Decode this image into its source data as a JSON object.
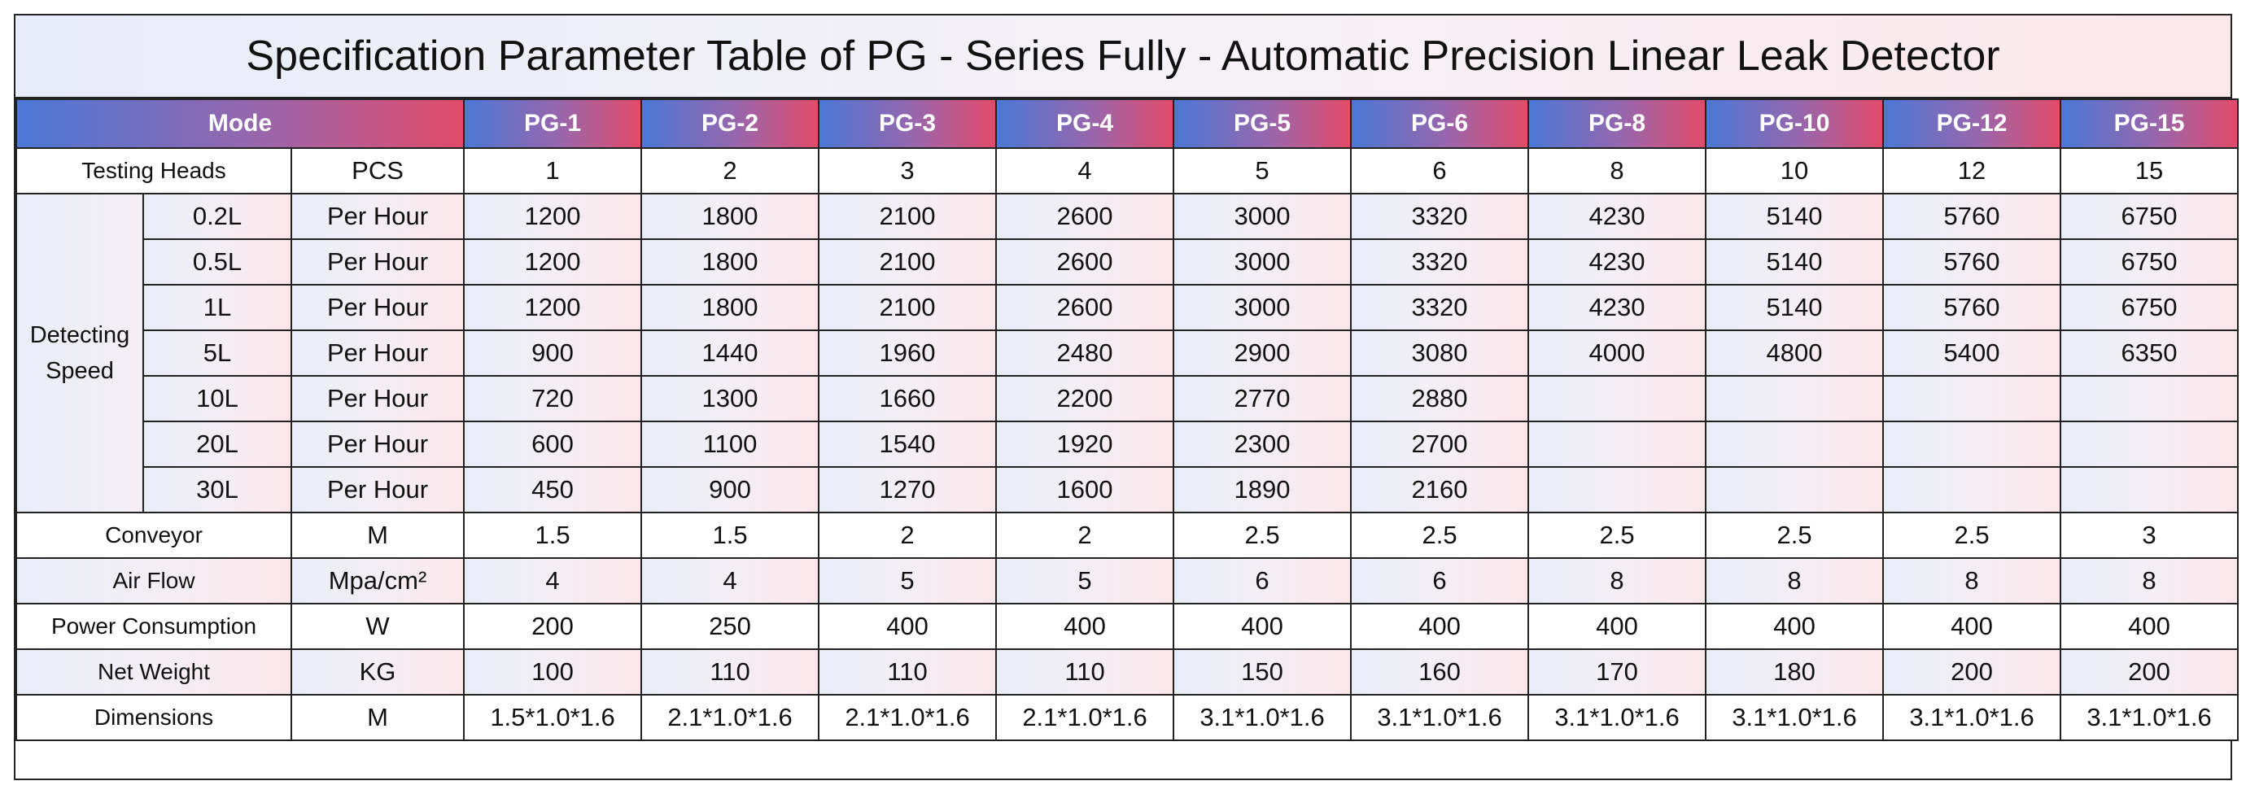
{
  "title": "Specification Parameter Table of PG - Series Fully - Automatic Precision Linear Leak Detector",
  "header": {
    "mode_label": "Mode",
    "models": [
      "PG-1",
      "PG-2",
      "PG-3",
      "PG-4",
      "PG-5",
      "PG-6",
      "PG-8",
      "PG-10",
      "PG-12",
      "PG-15"
    ]
  },
  "testing_heads": {
    "label": "Testing Heads",
    "unit": "PCS",
    "values": [
      "1",
      "2",
      "3",
      "4",
      "5",
      "6",
      "8",
      "10",
      "12",
      "15"
    ]
  },
  "detecting_speed": {
    "label": "Detecting Speed",
    "rows": [
      {
        "size": "0.2L",
        "unit": "Per Hour",
        "values": [
          "1200",
          "1800",
          "2100",
          "2600",
          "3000",
          "3320",
          "4230",
          "5140",
          "5760",
          "6750"
        ]
      },
      {
        "size": "0.5L",
        "unit": "Per Hour",
        "values": [
          "1200",
          "1800",
          "2100",
          "2600",
          "3000",
          "3320",
          "4230",
          "5140",
          "5760",
          "6750"
        ]
      },
      {
        "size": "1L",
        "unit": "Per Hour",
        "values": [
          "1200",
          "1800",
          "2100",
          "2600",
          "3000",
          "3320",
          "4230",
          "5140",
          "5760",
          "6750"
        ]
      },
      {
        "size": "5L",
        "unit": "Per Hour",
        "values": [
          "900",
          "1440",
          "1960",
          "2480",
          "2900",
          "3080",
          "4000",
          "4800",
          "5400",
          "6350"
        ]
      },
      {
        "size": "10L",
        "unit": "Per Hour",
        "values": [
          "720",
          "1300",
          "1660",
          "2200",
          "2770",
          "2880",
          "",
          "",
          "",
          ""
        ]
      },
      {
        "size": "20L",
        "unit": "Per Hour",
        "values": [
          "600",
          "1100",
          "1540",
          "1920",
          "2300",
          "2700",
          "",
          "",
          "",
          ""
        ]
      },
      {
        "size": "30L",
        "unit": "Per Hour",
        "values": [
          "450",
          "900",
          "1270",
          "1600",
          "1890",
          "2160",
          "",
          "",
          "",
          ""
        ]
      }
    ]
  },
  "specs": [
    {
      "label": "Conveyor",
      "unit": "M",
      "values": [
        "1.5",
        "1.5",
        "2",
        "2",
        "2.5",
        "2.5",
        "2.5",
        "2.5",
        "2.5",
        "3"
      ]
    },
    {
      "label": "Air Flow",
      "unit": "Mpa/cm²",
      "values": [
        "4",
        "4",
        "5",
        "5",
        "6",
        "6",
        "8",
        "8",
        "8",
        "8"
      ]
    },
    {
      "label": "Power Consumption",
      "unit": "W",
      "values": [
        "200",
        "250",
        "400",
        "400",
        "400",
        "400",
        "400",
        "400",
        "400",
        "400"
      ]
    },
    {
      "label": "Net Weight",
      "unit": "KG",
      "values": [
        "100",
        "110",
        "110",
        "110",
        "150",
        "160",
        "170",
        "180",
        "200",
        "200"
      ]
    },
    {
      "label": "Dimensions",
      "unit": "M",
      "values": [
        "1.5*1.0*1.6",
        "2.1*1.0*1.6",
        "2.1*1.0*1.6",
        "2.1*1.0*1.6",
        "3.1*1.0*1.6",
        "3.1*1.0*1.6",
        "3.1*1.0*1.6",
        "3.1*1.0*1.6",
        "3.1*1.0*1.6",
        "3.1*1.0*1.6"
      ]
    }
  ]
}
